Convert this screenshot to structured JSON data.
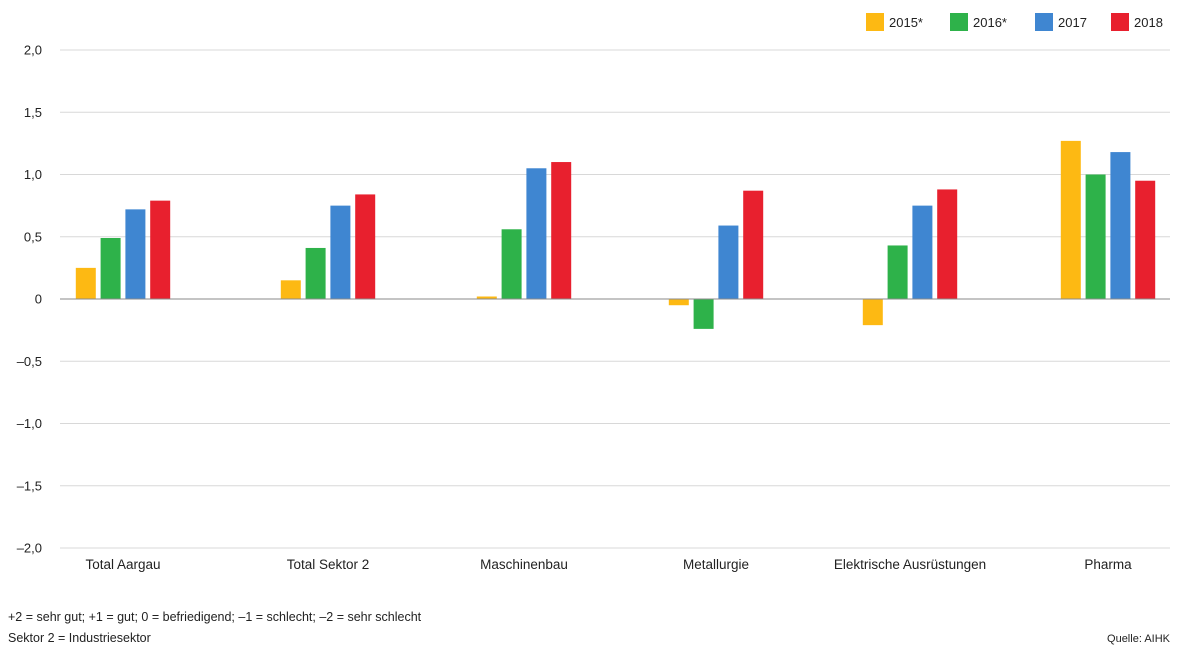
{
  "chart_data": {
    "type": "bar",
    "categories": [
      "Total Aargau",
      "Total Sektor 2",
      "Maschinenbau",
      "Metallurgie",
      "Elektrische Ausrüstungen",
      "Pharma"
    ],
    "series": [
      {
        "name": "2015*",
        "color": "#fdb913",
        "values": [
          0.25,
          0.15,
          0.02,
          -0.05,
          -0.21,
          1.27
        ]
      },
      {
        "name": "2016*",
        "color": "#2eb24a",
        "values": [
          0.49,
          0.41,
          0.56,
          -0.24,
          0.43,
          1.0
        ]
      },
      {
        "name": "2017",
        "color": "#3f86d1",
        "values": [
          0.72,
          0.75,
          1.05,
          0.59,
          0.75,
          1.18
        ]
      },
      {
        "name": "2018",
        "color": "#e8202e",
        "values": [
          0.79,
          0.84,
          1.1,
          0.87,
          0.88,
          0.95
        ]
      }
    ],
    "ylim": [
      -2.0,
      2.0
    ],
    "yticks": [
      "2,0",
      "1,5",
      "1,0",
      "0,5",
      "0",
      "–0,5",
      "–1,0",
      "–1,5",
      "–2,0"
    ],
    "ytick_values": [
      2.0,
      1.5,
      1.0,
      0.5,
      0,
      -0.5,
      -1.0,
      -1.5,
      -2.0
    ],
    "grid": true,
    "legend_position": "top-right"
  },
  "footnotes": {
    "scale_note": "+2 = sehr gut; +1 = gut; 0 = befriedigend; –1 = schlecht; –2 = sehr schlecht",
    "sector_note": "Sektor 2 = Industriesektor",
    "source": "Quelle: AIHK"
  }
}
